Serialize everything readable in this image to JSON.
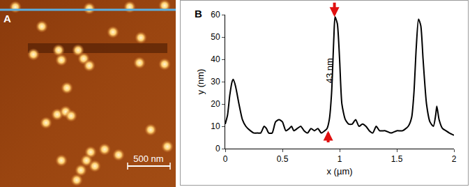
{
  "image_panel": {
    "label": "A",
    "scale_bar": "500 nm"
  },
  "chart_data": {
    "type": "line",
    "panel_label": "B",
    "x_label": "x (µm)",
    "y_label": "y (nm)",
    "x": [
      0,
      0.02,
      0.04,
      0.06,
      0.07,
      0.09,
      0.12,
      0.15,
      0.18,
      0.22,
      0.25,
      0.28,
      0.31,
      0.34,
      0.36,
      0.38,
      0.41,
      0.44,
      0.47,
      0.5,
      0.53,
      0.56,
      0.58,
      0.6,
      0.63,
      0.66,
      0.69,
      0.72,
      0.75,
      0.78,
      0.81,
      0.84,
      0.87,
      0.89,
      0.91,
      0.93,
      0.95,
      0.96,
      0.98,
      1.0,
      1.02,
      1.05,
      1.08,
      1.11,
      1.14,
      1.17,
      1.2,
      1.23,
      1.26,
      1.29,
      1.32,
      1.35,
      1.4,
      1.45,
      1.5,
      1.55,
      1.6,
      1.63,
      1.65,
      1.67,
      1.69,
      1.71,
      1.73,
      1.76,
      1.79,
      1.82,
      1.84,
      1.85,
      1.87,
      1.9,
      1.93,
      1.96,
      2.0
    ],
    "values": [
      11,
      15,
      24,
      30,
      31,
      28,
      20,
      13,
      10,
      8,
      7,
      7,
      7,
      10,
      9,
      7,
      7,
      12,
      13,
      12,
      8,
      9,
      10,
      8,
      9,
      10,
      8,
      7,
      9,
      8,
      9,
      7,
      8,
      9,
      13,
      25,
      50,
      59,
      56,
      40,
      20,
      13,
      11,
      11,
      13,
      10,
      11,
      10,
      8,
      7,
      10,
      8,
      8,
      7,
      8,
      8,
      10,
      14,
      25,
      45,
      58,
      55,
      40,
      20,
      12,
      10,
      15,
      19,
      13,
      9,
      8,
      7,
      6
    ],
    "color": "#000000",
    "xlim": [
      0,
      2
    ],
    "xticks": [
      0,
      0.5,
      1,
      1.5,
      2
    ],
    "ylim": [
      0,
      60
    ],
    "yticks": [
      0,
      10,
      20,
      30,
      40,
      50,
      60
    ],
    "grid": false,
    "annotations": [
      {
        "text": "43 nm",
        "x": 0.91,
        "y": 35
      }
    ],
    "arrows": [
      {
        "x": 0.955,
        "y": 59,
        "direction": "down"
      },
      {
        "x": 0.9,
        "y": 8,
        "direction": "up"
      }
    ]
  }
}
